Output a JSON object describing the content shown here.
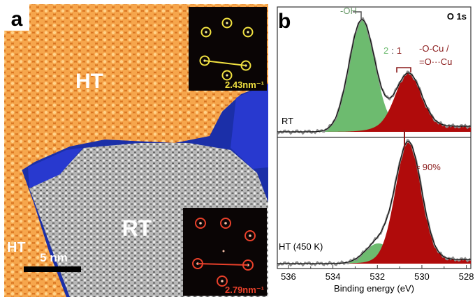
{
  "panel_a": {
    "label": "a",
    "ht_label": "HT",
    "rt_label": "RT",
    "ht_corner_label": "HT",
    "scale_bar_label": "5 nm",
    "fft_top_label": "2.43nm⁻¹",
    "fft_bottom_label": "2.79nm⁻¹",
    "colors": {
      "ht": "#e8892e",
      "rt": "#9a9a9a",
      "substrate": "#2233c8",
      "fft_ht": "#f0e040",
      "fft_rt": "#e8402a"
    }
  },
  "panel_b": {
    "label": "b",
    "spectrum_label": "O 1s",
    "oh_label": "-OH",
    "ratio_green": "2",
    "ratio_sep": ":",
    "ratio_red": "1",
    "ocu_label_line1": "-O-Cu /",
    "ocu_label_line2": "=O···Cu",
    "rt_trace_label": "RT",
    "ht_trace_label": "HT (450 K)",
    "percent_label": "≈ 90%",
    "colors": {
      "oh": "#6dbb6f",
      "ocu": "#b00b0b",
      "accent_text": "#8a1a1a"
    }
  },
  "chart_data": {
    "type": "line",
    "xlabel": "Binding energy (eV)",
    "x_ticks": [
      "536",
      "534",
      "532",
      "530",
      "528"
    ],
    "xlim": [
      536.5,
      527.8
    ],
    "x_reversed": true,
    "series": [
      {
        "name": "-OH",
        "trace": "RT",
        "peak_center_eV": 532.7,
        "relative_height": 1.0
      },
      {
        "name": "-O-Cu / =O···Cu",
        "trace": "RT",
        "peak_center_eV": 530.6,
        "relative_height": 0.48
      },
      {
        "name": "-OH",
        "trace": "HT (450 K)",
        "peak_center_eV": 532.0,
        "relative_height": 0.15
      },
      {
        "name": "-O-Cu / =O···Cu",
        "trace": "HT (450 K)",
        "peak_center_eV": 530.6,
        "relative_height": 1.0
      }
    ]
  }
}
